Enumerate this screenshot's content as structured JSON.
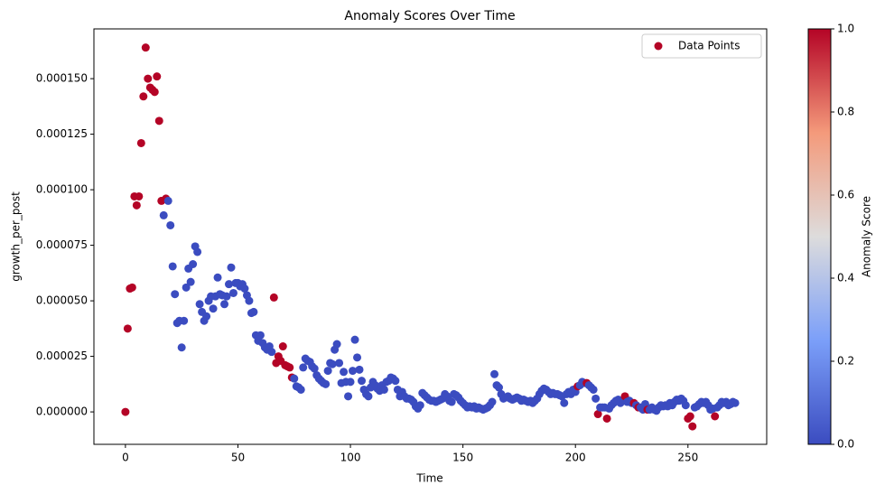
{
  "chart_data": {
    "type": "scatter",
    "title": "Anomaly Scores Over Time",
    "xlabel": "Time",
    "ylabel": "growth_per_post",
    "legend": {
      "label": "Data Points",
      "color": "#b40426",
      "position": "upper right"
    },
    "xlim": [
      -14,
      285
    ],
    "ylim": [
      -1.46e-05,
      0.0001724
    ],
    "xticks": [
      0,
      50,
      100,
      150,
      200,
      250
    ],
    "yticks": [
      {
        "value": 0,
        "label": "0.000000"
      },
      {
        "value": 2.5e-05,
        "label": "0.000025"
      },
      {
        "value": 5e-05,
        "label": "0.000050"
      },
      {
        "value": 7.5e-05,
        "label": "0.000075"
      },
      {
        "value": 0.0001,
        "label": "0.000100"
      },
      {
        "value": 0.000125,
        "label": "0.000125"
      },
      {
        "value": 0.00015,
        "label": "0.000150"
      }
    ],
    "colorbar": {
      "label": "Anomaly Score",
      "lim": [
        0,
        1
      ],
      "ticks": [
        {
          "value": 0,
          "label": "0.0"
        },
        0.2,
        0.4,
        0.6,
        0.8,
        {
          "value": 1,
          "label": "1.0"
        }
      ],
      "colors": [
        "#3b4cc0",
        "#7b9ff9",
        "#dddcdc",
        "#f49a7b",
        "#b40426"
      ]
    },
    "x": [
      0,
      1,
      2,
      3,
      4,
      5,
      6,
      7,
      8,
      9,
      10,
      11,
      12,
      13,
      14,
      15,
      16,
      17,
      18,
      19,
      20,
      21,
      22,
      23,
      24,
      25,
      26,
      27,
      28,
      29,
      30,
      31,
      32,
      33,
      34,
      35,
      36,
      37,
      38,
      39,
      40,
      41,
      42,
      43,
      44,
      45,
      46,
      47,
      48,
      49,
      50,
      51,
      52,
      53,
      54,
      55,
      56,
      57,
      58,
      59,
      60,
      61,
      62,
      63,
      64,
      65,
      66,
      67,
      68,
      69,
      70,
      71,
      72,
      73,
      74,
      75,
      76,
      77,
      78,
      79,
      80,
      81,
      82,
      83,
      84,
      85,
      86,
      87,
      88,
      89,
      90,
      91,
      92,
      93,
      94,
      95,
      96,
      97,
      98,
      99,
      100,
      101,
      102,
      103,
      104,
      105,
      106,
      107,
      108,
      109,
      110,
      111,
      112,
      113,
      114,
      115,
      116,
      117,
      118,
      119,
      120,
      121,
      122,
      123,
      124,
      125,
      126,
      127,
      128,
      129,
      130,
      131,
      132,
      133,
      134,
      135,
      136,
      137,
      138,
      139,
      140,
      141,
      142,
      143,
      144,
      145,
      146,
      147,
      148,
      149,
      150,
      151,
      152,
      153,
      154,
      155,
      156,
      157,
      158,
      159,
      160,
      161,
      162,
      163,
      164,
      165,
      166,
      167,
      168,
      169,
      170,
      171,
      172,
      173,
      174,
      175,
      176,
      177,
      178,
      179,
      180,
      181,
      182,
      183,
      184,
      185,
      186,
      187,
      188,
      189,
      190,
      191,
      192,
      193,
      194,
      195,
      196,
      197,
      198,
      199,
      200,
      201,
      202,
      203,
      204,
      205,
      206,
      207,
      208,
      209,
      210,
      211,
      212,
      213,
      214,
      215,
      216,
      217,
      218,
      219,
      220,
      221,
      222,
      223,
      224,
      225,
      226,
      227,
      228,
      229,
      230,
      231,
      232,
      233,
      234,
      235,
      236,
      237,
      238,
      239,
      240,
      241,
      242,
      243,
      244,
      245,
      246,
      247,
      248,
      249,
      250,
      251,
      252,
      253,
      254,
      255,
      256,
      257,
      258,
      259,
      260,
      261,
      262,
      263,
      264,
      265,
      266,
      267,
      268,
      269,
      270,
      271
    ],
    "y": [
      0,
      3.75e-05,
      5.55e-05,
      5.6e-05,
      9.7e-05,
      9.3e-05,
      9.7e-05,
      0.000121,
      0.000142,
      0.000164,
      0.00015,
      0.000146,
      0.000145,
      0.000144,
      0.000151,
      0.000131,
      9.5e-05,
      8.85e-05,
      9.6e-05,
      9.5e-05,
      8.4e-05,
      6.55e-05,
      5.3e-05,
      4e-05,
      4.1e-05,
      2.9e-05,
      4.1e-05,
      5.6e-05,
      6.45e-05,
      5.85e-05,
      6.65e-05,
      7.45e-05,
      7.2e-05,
      4.85e-05,
      4.5e-05,
      4.1e-05,
      4.3e-05,
      5e-05,
      5.2e-05,
      4.65e-05,
      5.2e-05,
      6.05e-05,
      5.3e-05,
      5.25e-05,
      4.85e-05,
      5.2e-05,
      5.75e-05,
      6.5e-05,
      5.35e-05,
      5.8e-05,
      5.8e-05,
      5.65e-05,
      5.75e-05,
      5.55e-05,
      5.25e-05,
      5e-05,
      4.45e-05,
      4.5e-05,
      3.45e-05,
      3.2e-05,
      3.45e-05,
      3.1e-05,
      2.9e-05,
      2.8e-05,
      2.95e-05,
      2.7e-05,
      5.15e-05,
      2.2e-05,
      2.5e-05,
      2.3e-05,
      2.95e-05,
      2.1e-05,
      2.05e-05,
      2e-05,
      1.55e-05,
      1.5e-05,
      1.15e-05,
      1.1e-05,
      1e-05,
      2e-05,
      2.4e-05,
      2.3e-05,
      2.25e-05,
      2.05e-05,
      1.95e-05,
      1.65e-05,
      1.5e-05,
      1.4e-05,
      1.3e-05,
      1.25e-05,
      1.85e-05,
      2.2e-05,
      2.15e-05,
      2.8e-05,
      3.05e-05,
      2.2e-05,
      1.3e-05,
      1.8e-05,
      1.35e-05,
      7e-06,
      1.35e-05,
      1.85e-05,
      3.25e-05,
      2.45e-05,
      1.9e-05,
      1.4e-05,
      1e-05,
      8e-06,
      7e-06,
      1.1e-05,
      1.35e-05,
      1.2e-05,
      1.05e-05,
      9.5e-06,
      1.2e-05,
      1e-05,
      1.35e-05,
      1.4e-05,
      1.55e-05,
      1.5e-05,
      1.4e-05,
      1e-05,
      7e-06,
      9e-06,
      7e-06,
      6e-06,
      6e-06,
      5.5e-06,
      4.5e-06,
      2.5e-06,
      1.5e-06,
      3e-06,
      8.5e-06,
      7.5e-06,
      6.5e-06,
      5.5e-06,
      5e-06,
      5e-06,
      4.5e-06,
      5e-06,
      5.5e-06,
      6e-06,
      8e-06,
      7e-06,
      5e-06,
      4.5e-06,
      8e-06,
      7.5e-06,
      6.5e-06,
      5e-06,
      4e-06,
      3e-06,
      2e-06,
      2.5e-06,
      2e-06,
      2.5e-06,
      1.5e-06,
      2e-06,
      1.5e-06,
      1e-06,
      1.5e-06,
      2e-06,
      3e-06,
      4.5e-06,
      1.7e-05,
      1.2e-05,
      1.1e-05,
      8e-06,
      6e-06,
      6.5e-06,
      7e-06,
      6e-06,
      5.5e-06,
      6e-06,
      6.5e-06,
      6e-06,
      5e-06,
      5.5e-06,
      5e-06,
      4.5e-06,
      5e-06,
      4e-06,
      5e-06,
      6e-06,
      8e-06,
      9.5e-06,
      1.05e-05,
      1e-05,
      9e-06,
      8e-06,
      8.5e-06,
      8e-06,
      8e-06,
      7.5e-06,
      7e-06,
      4e-06,
      8e-06,
      9e-06,
      8e-06,
      1e-05,
      9e-06,
      1.15e-05,
      1.2e-05,
      1.35e-05,
      1.3e-05,
      1.3e-05,
      1.2e-05,
      1.1e-05,
      1e-05,
      6e-06,
      -1e-06,
      2e-06,
      2e-06,
      2e-06,
      -3e-06,
      1.5e-06,
      3e-06,
      4e-06,
      5e-06,
      5.5e-06,
      4e-06,
      5e-06,
      7e-06,
      4.5e-06,
      5e-06,
      4e-06,
      4e-06,
      3e-06,
      2e-06,
      2e-06,
      1e-06,
      3.5e-06,
      1e-06,
      1e-06,
      2e-06,
      1e-06,
      5e-07,
      2e-06,
      3e-06,
      2.5e-06,
      3e-06,
      2.5e-06,
      4e-06,
      3e-06,
      4.5e-06,
      5.5e-06,
      5e-06,
      6e-06,
      5e-06,
      3e-06,
      -3e-06,
      -2e-06,
      -6.5e-06,
      2e-06,
      2.5e-06,
      3.5e-06,
      4.5e-06,
      4e-06,
      4.5e-06,
      3e-06,
      1e-06,
      1.5e-06,
      -2e-06,
      2e-06,
      3e-06,
      4.5e-06,
      4e-06,
      4.5e-06,
      3e-06,
      3.5e-06,
      4.5e-06,
      4e-06
    ],
    "scores": [
      1,
      1,
      1,
      1,
      1,
      1,
      1,
      1,
      1,
      1,
      1,
      1,
      1,
      1,
      1,
      1,
      1,
      0,
      1,
      0,
      0,
      0,
      0,
      0,
      0,
      0,
      0,
      0,
      0,
      0,
      0,
      0,
      0,
      0,
      0,
      0,
      0,
      0,
      0,
      0,
      0,
      0,
      0,
      0,
      0,
      0,
      0,
      0,
      0,
      0,
      0,
      0,
      0,
      0,
      0,
      0,
      0,
      0,
      0,
      0,
      0,
      0,
      0,
      0,
      0,
      0,
      1,
      1,
      1,
      1,
      1,
      1,
      1,
      1,
      1,
      0,
      0,
      0,
      0,
      0,
      0,
      0,
      0,
      0,
      0,
      0,
      0,
      0,
      0,
      0,
      0,
      0,
      0,
      0,
      0,
      0,
      0,
      0,
      0,
      0,
      0,
      0,
      0,
      0,
      0,
      0,
      0,
      0,
      0,
      0,
      0,
      0,
      0,
      0,
      0,
      0,
      0,
      0,
      0,
      0,
      0,
      0,
      0,
      0,
      0,
      0,
      0,
      0,
      0,
      0,
      0,
      0,
      0,
      0,
      0,
      0,
      0,
      0,
      0,
      0,
      0,
      0,
      0,
      0,
      0,
      0,
      0,
      0,
      0,
      0,
      0,
      0,
      0,
      0,
      0,
      0,
      0,
      0,
      0,
      0,
      0,
      0,
      0,
      0,
      0,
      0,
      0,
      0,
      0,
      0,
      0,
      0,
      0,
      0,
      0,
      0,
      0,
      0,
      0,
      0,
      0,
      0,
      0,
      0,
      0,
      0,
      0,
      0,
      0,
      0,
      0,
      0,
      0,
      0,
      0,
      0,
      0,
      0,
      0,
      0,
      0,
      1,
      0,
      0,
      0,
      1,
      0,
      0,
      0,
      0,
      1,
      0,
      0,
      0,
      1,
      0,
      0,
      0,
      0,
      0,
      0,
      0,
      1,
      0,
      0,
      0,
      1,
      0,
      1,
      0,
      0,
      0,
      1,
      0,
      0,
      0,
      0,
      0,
      0,
      0,
      0,
      0,
      0,
      0,
      0,
      0,
      0,
      0,
      0,
      0,
      1,
      1,
      1,
      0,
      0,
      0,
      0,
      0,
      0,
      0,
      0,
      0,
      1,
      0,
      0,
      0,
      0,
      0,
      0,
      0,
      0,
      0
    ]
  }
}
